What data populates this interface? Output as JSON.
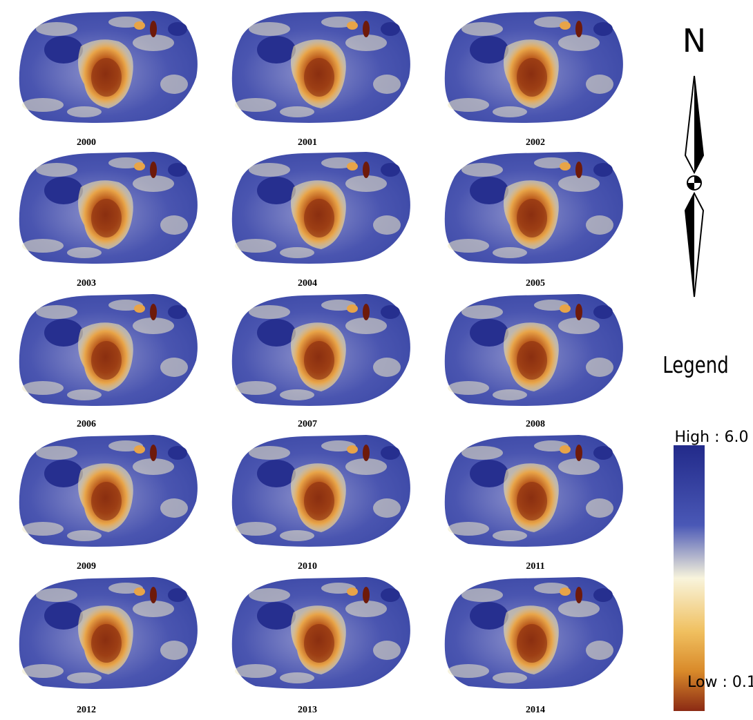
{
  "maps": {
    "panels": [
      {
        "label": "2000"
      },
      {
        "label": "2001"
      },
      {
        "label": "2002"
      },
      {
        "label": "2003"
      },
      {
        "label": "2004"
      },
      {
        "label": "2005"
      },
      {
        "label": "2006"
      },
      {
        "label": "2007"
      },
      {
        "label": "2008"
      },
      {
        "label": "2009"
      },
      {
        "label": "2010"
      },
      {
        "label": "2011"
      },
      {
        "label": "2012"
      },
      {
        "label": "2013"
      },
      {
        "label": "2014"
      }
    ]
  },
  "north_arrow": {
    "label": "N"
  },
  "legend": {
    "title": "Legend",
    "high": "High : 6.0",
    "low": "Low : 0.1"
  }
}
